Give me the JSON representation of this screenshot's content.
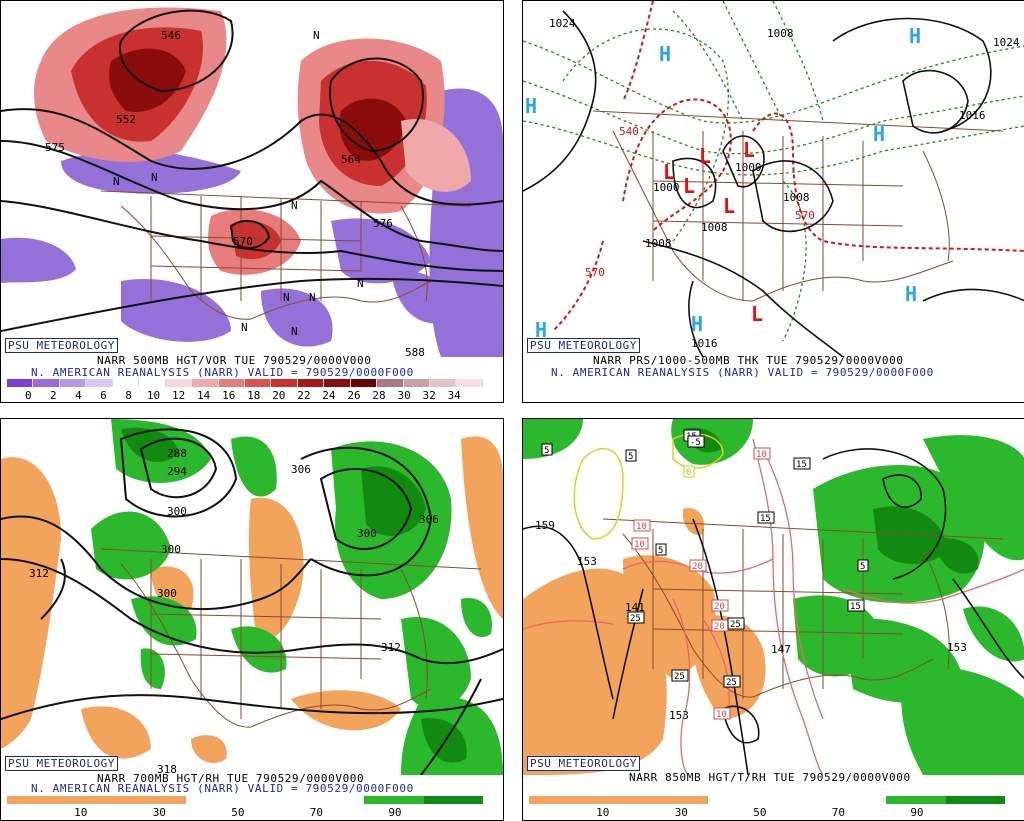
{
  "credit": "PSU METEOROLOGY",
  "panels": [
    {
      "caption1": "NARR 500MB HGT/VOR TUE 790529/0000V000",
      "caption2": "N. AMERICAN REANALYSIS (NARR) VALID = 790529/0000F000",
      "colorbar_labels": [
        "0",
        "2",
        "4",
        "6",
        "8",
        "10",
        "12",
        "14",
        "16",
        "18",
        "20",
        "22",
        "24",
        "26",
        "28",
        "30",
        "32",
        "34"
      ],
      "colorbar_colors": [
        "#7b3fd6",
        "#9a6ae0",
        "#b69aea",
        "#d6c8f3",
        "#ffffff",
        "#ffffff",
        "#f7d7d7",
        "#f0a9a9",
        "#e67c7c",
        "#dc5050",
        "#c93030",
        "#a81818",
        "#8a0c0c",
        "#6a0404",
        "#a67a80",
        "#c9a0a6",
        "#e5c2c8",
        "#f5e0e4"
      ],
      "contour_labels": [
        "546",
        "552",
        "575",
        "564",
        "570",
        "576",
        "588"
      ],
      "vort_marks": [
        "N",
        "N",
        "N",
        "N",
        "N",
        "N",
        "N",
        "N",
        "N"
      ]
    },
    {
      "caption1": "NARR PRS/1000-500MB THK TUE 790529/0000V000",
      "caption2": "N. AMERICAN REANALYSIS (NARR) VALID = 790529/0000F000",
      "pressure_labels": [
        "1024",
        "1008",
        "1024",
        "1016",
        "1000",
        "1008",
        "1008",
        "1008",
        "1016",
        "1000"
      ],
      "thickness_labels": [
        "540",
        "570",
        "570"
      ],
      "highs": [
        "H",
        "H",
        "H",
        "H",
        "H",
        "H",
        "H"
      ],
      "lows": [
        "L",
        "L",
        "L",
        "L",
        "L",
        "L"
      ]
    },
    {
      "caption1": "NARR 700MB HGT/RH TUE 790529/0000V000",
      "caption2": "N. AMERICAN REANALYSIS (NARR) VALID = 790529/0000F000",
      "colorbar_labels": [
        "10",
        "30",
        "50",
        "70",
        "90"
      ],
      "contour_labels": [
        "288",
        "294",
        "306",
        "300",
        "300",
        "306",
        "312",
        "300",
        "300",
        "312",
        "318"
      ]
    },
    {
      "caption1": "NARR 850MB HGT/T/RH TUE 790529/0000V000",
      "colorbar_labels": [
        "10",
        "30",
        "50",
        "70",
        "90"
      ],
      "height_labels": [
        "159",
        "153",
        "141",
        "147",
        "153",
        "153"
      ],
      "temp_labels": [
        "5",
        "5",
        "5",
        "10",
        "10",
        "15",
        "15",
        "15",
        "20",
        "20",
        "20",
        "25",
        "25",
        "25",
        "25",
        "10",
        "10",
        "15",
        "5",
        "-5",
        "0"
      ]
    }
  ],
  "colors": {
    "rh_dry": "#f2a45c",
    "rh_moist": "#2cb82c",
    "rh_very_moist": "#128a12",
    "borders": "#8a4a2a",
    "low_marker": "#e0140c",
    "high_marker": "#2aa6e8",
    "thickness": "#e01010",
    "thickness_cold": "#1f8a1f"
  }
}
